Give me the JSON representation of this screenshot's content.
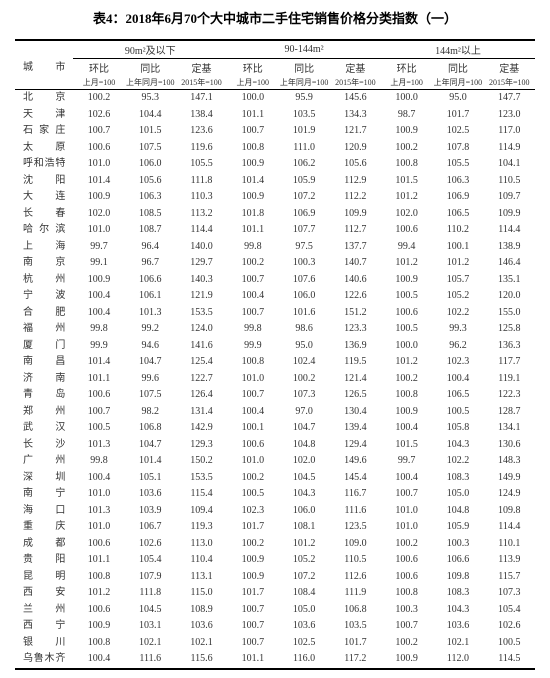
{
  "title": "表4：2018年6月70个大中城市二手住宅销售价格分类指数（一）",
  "header": {
    "city_label": "城市",
    "groups": [
      "90m²及以下",
      "90-144m²",
      "144m²以上"
    ],
    "subcols": [
      "环比",
      "同比",
      "定基"
    ],
    "bases": [
      "上月=100",
      "上年同月=100",
      "2015年=100"
    ]
  },
  "cities": [
    "北京",
    "天津",
    "石家庄",
    "太原",
    "呼和浩特",
    "沈阳",
    "大连",
    "长春",
    "哈尔滨",
    "上海",
    "南京",
    "杭州",
    "宁波",
    "合肥",
    "福州",
    "厦门",
    "南昌",
    "济南",
    "青岛",
    "郑州",
    "武汉",
    "长沙",
    "广州",
    "深圳",
    "南宁",
    "海口",
    "重庆",
    "成都",
    "贵阳",
    "昆明",
    "西安",
    "兰州",
    "西宁",
    "银川",
    "乌鲁木齐"
  ],
  "rows": [
    [
      100.2,
      95.3,
      147.1,
      100.0,
      95.9,
      145.6,
      100.0,
      95.0,
      147.7
    ],
    [
      102.6,
      104.4,
      138.4,
      101.1,
      103.5,
      134.3,
      98.7,
      101.7,
      123.0
    ],
    [
      100.7,
      101.5,
      123.6,
      100.7,
      101.9,
      121.7,
      100.9,
      102.5,
      117.0
    ],
    [
      100.6,
      107.5,
      119.6,
      100.8,
      111.0,
      120.9,
      100.2,
      107.8,
      114.9
    ],
    [
      101.0,
      106.0,
      105.5,
      100.9,
      106.2,
      105.6,
      100.8,
      105.5,
      104.1
    ],
    [
      101.4,
      105.6,
      111.8,
      101.4,
      105.9,
      112.9,
      101.5,
      106.3,
      110.5
    ],
    [
      100.9,
      106.3,
      110.3,
      100.9,
      107.2,
      112.2,
      101.2,
      106.9,
      109.7
    ],
    [
      102.0,
      108.5,
      113.2,
      101.8,
      106.9,
      109.9,
      102.0,
      106.5,
      109.9
    ],
    [
      101.0,
      108.7,
      114.4,
      101.1,
      107.7,
      112.7,
      100.6,
      110.2,
      114.4
    ],
    [
      99.7,
      96.4,
      140.0,
      99.8,
      97.5,
      137.7,
      99.4,
      100.1,
      138.9
    ],
    [
      99.1,
      96.7,
      129.7,
      100.2,
      100.3,
      140.7,
      101.2,
      101.2,
      146.4
    ],
    [
      100.9,
      106.6,
      140.3,
      100.7,
      107.6,
      140.6,
      100.9,
      105.7,
      135.1
    ],
    [
      100.4,
      106.1,
      121.9,
      100.4,
      106.0,
      122.6,
      100.5,
      105.2,
      120.0
    ],
    [
      100.4,
      101.3,
      153.5,
      100.7,
      101.6,
      151.2,
      100.6,
      102.2,
      155.0
    ],
    [
      99.8,
      99.2,
      124.0,
      99.8,
      98.6,
      123.3,
      100.5,
      99.3,
      125.8
    ],
    [
      99.9,
      94.6,
      141.6,
      99.9,
      95.0,
      136.9,
      100.0,
      96.2,
      136.3
    ],
    [
      101.4,
      104.7,
      125.4,
      100.8,
      102.4,
      119.5,
      101.2,
      102.3,
      117.7
    ],
    [
      101.1,
      99.6,
      122.7,
      101.0,
      100.2,
      121.4,
      100.2,
      100.4,
      119.1
    ],
    [
      100.6,
      107.5,
      126.4,
      100.7,
      107.3,
      126.5,
      100.8,
      106.5,
      122.3
    ],
    [
      100.7,
      98.2,
      131.4,
      100.4,
      97.0,
      130.4,
      100.9,
      100.5,
      128.7
    ],
    [
      100.5,
      106.8,
      142.9,
      100.1,
      104.7,
      139.4,
      100.4,
      105.8,
      134.1
    ],
    [
      101.3,
      104.7,
      129.3,
      100.6,
      104.8,
      129.4,
      101.5,
      104.3,
      130.6
    ],
    [
      99.8,
      101.4,
      150.2,
      101.0,
      102.0,
      149.6,
      99.7,
      102.2,
      148.3
    ],
    [
      100.4,
      105.1,
      153.5,
      100.2,
      104.5,
      145.4,
      100.4,
      108.3,
      149.9
    ],
    [
      101.0,
      103.6,
      115.4,
      100.5,
      104.3,
      116.7,
      100.7,
      105.0,
      124.9
    ],
    [
      101.3,
      103.9,
      109.4,
      102.3,
      106.0,
      111.6,
      101.0,
      104.8,
      109.8
    ],
    [
      101.0,
      106.7,
      119.3,
      101.7,
      108.1,
      123.5,
      101.0,
      105.9,
      114.4
    ],
    [
      100.6,
      102.6,
      113.0,
      100.2,
      101.2,
      109.0,
      100.2,
      100.3,
      110.1
    ],
    [
      101.1,
      105.4,
      110.4,
      100.9,
      105.2,
      110.5,
      100.6,
      106.6,
      113.9
    ],
    [
      100.8,
      107.9,
      113.1,
      100.9,
      107.2,
      112.6,
      100.6,
      109.8,
      115.7
    ],
    [
      101.2,
      111.8,
      115.0,
      101.7,
      108.4,
      111.9,
      100.8,
      108.3,
      107.3
    ],
    [
      100.6,
      104.5,
      108.9,
      100.7,
      105.0,
      106.8,
      100.3,
      104.3,
      105.4
    ],
    [
      100.9,
      103.1,
      103.6,
      100.7,
      103.6,
      103.5,
      100.7,
      103.6,
      102.6
    ],
    [
      100.8,
      102.1,
      102.1,
      100.7,
      102.5,
      101.7,
      100.2,
      102.1,
      100.5
    ],
    [
      100.4,
      111.6,
      115.6,
      101.1,
      116.0,
      117.2,
      100.9,
      112.0,
      114.5
    ]
  ],
  "style": {
    "bg": "#ffffff",
    "text": "#333333",
    "border": "#000000",
    "font": "SimSun",
    "title_fontsize": 13,
    "body_fontsize": 10,
    "small_fontsize": 8,
    "col_city_width": 58,
    "col_sub_width": 51,
    "row_line_height": 14.5
  }
}
